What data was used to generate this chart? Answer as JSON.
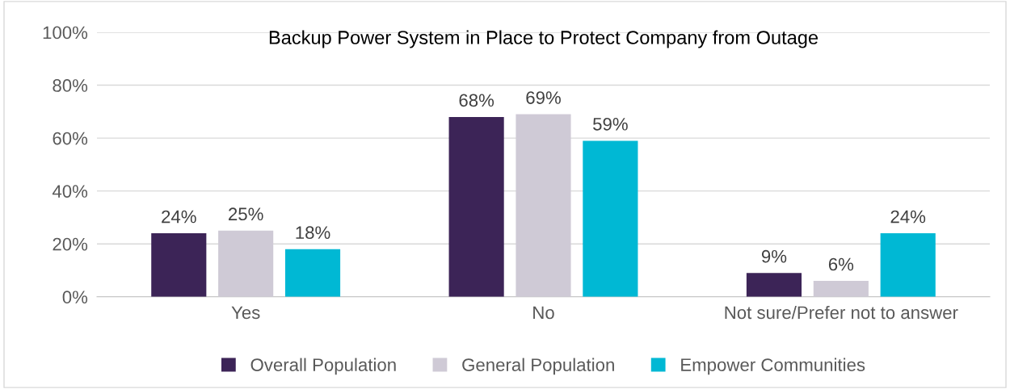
{
  "chart_data": {
    "type": "bar",
    "title": "Backup Power System in Place to Protect Company from Outage",
    "categories": [
      "Yes",
      "No",
      "Not sure/Prefer not to answer"
    ],
    "series": [
      {
        "name": "Overall Population",
        "color": "#3c2457",
        "values": [
          24,
          68,
          9
        ],
        "value_labels": [
          "24%",
          "68%",
          "9%"
        ]
      },
      {
        "name": "General Population",
        "color": "#cfcad6",
        "values": [
          25,
          69,
          6
        ],
        "value_labels": [
          "25%",
          "69%",
          "6%"
        ]
      },
      {
        "name": "Empower Communities",
        "color": "#00b8d4",
        "values": [
          18,
          59,
          24
        ],
        "value_labels": [
          "18%",
          "59%",
          "24%"
        ]
      }
    ],
    "ylim": [
      0,
      100
    ],
    "yticks": [
      {
        "value": 0,
        "label": "0%"
      },
      {
        "value": 20,
        "label": "20%"
      },
      {
        "value": 40,
        "label": "40%"
      },
      {
        "value": 60,
        "label": "60%"
      },
      {
        "value": 80,
        "label": "80%"
      },
      {
        "value": 100,
        "label": "100%"
      }
    ],
    "grid": "y",
    "legend": "bottom"
  }
}
